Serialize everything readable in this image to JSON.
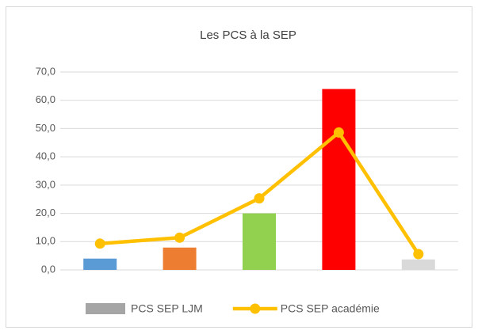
{
  "chart_data": {
    "type": "bar",
    "title": "Les PCS à la SEP",
    "categories": [
      null,
      null,
      null,
      null,
      null
    ],
    "series": [
      {
        "name": "PCS SEP LJM",
        "type": "bar",
        "color": "#a5a5a5",
        "colors": [
          "#5b9bd5",
          "#ed7d31",
          "#92d050",
          "#ff0000",
          "#d9d9d9"
        ],
        "values": [
          4.0,
          7.9,
          20.0,
          64.0,
          3.7
        ]
      },
      {
        "name": "PCS SEP académie",
        "type": "line",
        "color": "#ffc000",
        "values": [
          9.3,
          11.4,
          25.3,
          48.6,
          5.6
        ]
      }
    ],
    "ylim": [
      0,
      70
    ],
    "yticks": [
      {
        "value": 0,
        "label": "0,0"
      },
      {
        "value": 10,
        "label": "10,0"
      },
      {
        "value": 20,
        "label": "20,0"
      },
      {
        "value": 30,
        "label": "30,0"
      },
      {
        "value": 40,
        "label": "40,0"
      },
      {
        "value": 50,
        "label": "50,0"
      },
      {
        "value": 60,
        "label": "60,0"
      },
      {
        "value": 70,
        "label": "70,0"
      }
    ],
    "grid": true,
    "legend": "bottom"
  }
}
